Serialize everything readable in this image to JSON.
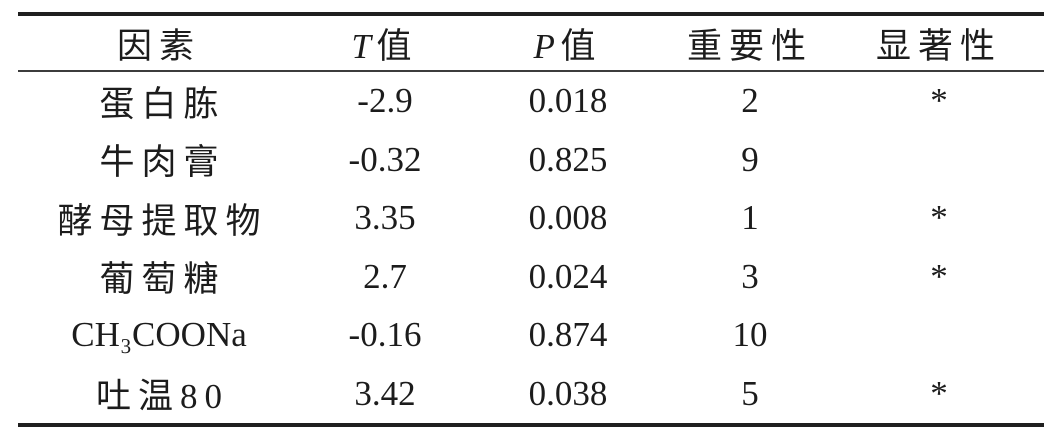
{
  "chart_data": {
    "type": "table",
    "columns": [
      {
        "italic": "",
        "text": "因素"
      },
      {
        "italic": "T",
        "text": "值"
      },
      {
        "italic": "P",
        "text": "值"
      },
      {
        "italic": "",
        "text": "重要性"
      },
      {
        "italic": "",
        "text": "显著性"
      }
    ],
    "rows": [
      {
        "cells": [
          "蛋白胨",
          "-2.9",
          "0.018",
          "2",
          "*"
        ]
      },
      {
        "cells": [
          "牛肉膏",
          "-0.32",
          "0.825",
          "9",
          ""
        ]
      },
      {
        "cells": [
          "酵母提取物",
          "3.35",
          "0.008",
          "1",
          "*"
        ]
      },
      {
        "cells": [
          "葡萄糖",
          "2.7",
          "0.024",
          "3",
          "*"
        ]
      },
      {
        "cells": [
          "CH₃COONa",
          "-0.16",
          "0.874",
          "10",
          ""
        ]
      },
      {
        "cells": [
          "吐温80",
          "3.42",
          "0.038",
          "5",
          "*"
        ]
      }
    ]
  },
  "colors": {
    "background": "#ffffff",
    "text": "#1c1c1c",
    "rule_heavy": "#1f1f1f",
    "rule_light": "#3c3c3c"
  }
}
